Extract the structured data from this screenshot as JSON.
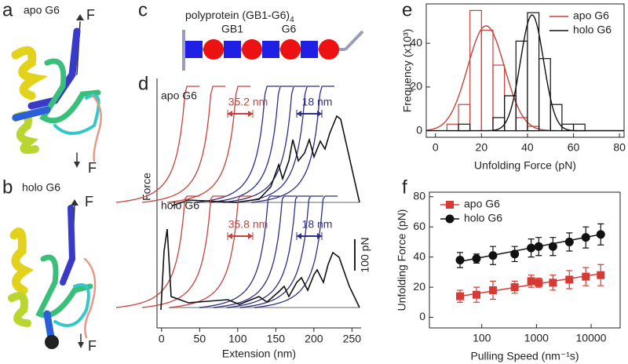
{
  "panel_labels": [
    "a",
    "b",
    "c",
    "d",
    "e",
    "f"
  ],
  "structures": [
    {
      "title": "apo G6",
      "force_labels": [
        "F",
        "F"
      ]
    },
    {
      "title": "holo G6",
      "force_labels": [
        "F",
        "F"
      ]
    }
  ],
  "schematic": {
    "title": "polyprotein (GB1-G6)",
    "title_subscript": "4",
    "domain_labels": [
      "GB1",
      "G6"
    ]
  },
  "chart_data": [
    {
      "type": "line",
      "x_label": "Extension (nm)",
      "y_label": "Force",
      "xlim": [
        -6,
        262
      ],
      "xticks": [
        0,
        50,
        100,
        150,
        200,
        250
      ],
      "trace_titles": [
        "apo G6",
        "holo G6"
      ],
      "annotations": [
        "35.2 nm",
        "18 nm",
        "35.8 nm",
        "18 nm"
      ],
      "scale_bar": "100 pN",
      "colors": [
        "#c8413b",
        "#2e2e86",
        "#111111",
        "#999999"
      ]
    },
    {
      "type": "histogram",
      "x_label": "Unfolding Force (pN)",
      "y_label": "Frequency (x10³)",
      "xlim": [
        -4,
        82
      ],
      "xticks": [
        0,
        20,
        40,
        60,
        80
      ],
      "ylim": [
        -3,
        58
      ],
      "yticks": [
        0,
        20,
        40
      ],
      "legend": "upper right",
      "grid": false,
      "series": [
        {
          "name": "apo G6",
          "color": "#c8413b",
          "bins": [
            5,
            10,
            15,
            20,
            25,
            30,
            35,
            40,
            45
          ],
          "values": [
            3,
            12,
            55,
            46,
            30,
            16,
            6,
            2
          ],
          "fit": {
            "mean": 22,
            "sd": 8,
            "peak": 48
          }
        },
        {
          "name": "holo G6",
          "color": "#111111",
          "bins": [
            10,
            15,
            20,
            25,
            30,
            35,
            40,
            45,
            50,
            55,
            60,
            65
          ],
          "values": [
            3,
            0,
            0,
            6,
            16,
            41,
            54,
            33,
            12,
            3,
            3
          ],
          "fit": {
            "mean": 42,
            "sd": 5,
            "peak": 53
          }
        }
      ]
    },
    {
      "type": "scatter",
      "x_label": "Pulling Speed (nm⁻¹s)",
      "y_label": "Unfolding Force (pN)",
      "xscale": "log",
      "xlim": [
        11,
        34000
      ],
      "xticks": [
        100,
        1000,
        10000
      ],
      "ylim": [
        -7,
        83
      ],
      "yticks": [
        0,
        20,
        40,
        60,
        80
      ],
      "legend": "upper left",
      "grid": false,
      "x": [
        40,
        80,
        160,
        400,
        800,
        1100,
        2000,
        4000,
        8000,
        15000
      ],
      "series": [
        {
          "name": "apo G6",
          "color": "#d63a35",
          "marker": "square",
          "values": [
            14,
            15,
            18,
            20,
            24,
            23,
            23,
            25,
            27,
            28
          ],
          "errors": [
            4,
            5,
            6,
            4,
            4,
            3,
            5,
            6,
            6,
            7
          ],
          "fit": [
            14,
            29
          ]
        },
        {
          "name": "holo G6",
          "color": "#111111",
          "marker": "circle",
          "values": [
            38,
            39,
            41,
            42,
            46,
            47,
            47,
            50,
            53,
            55
          ],
          "errors": [
            5,
            3,
            6,
            5,
            6,
            6,
            6,
            6,
            7,
            7
          ],
          "fit": [
            37,
            55
          ]
        }
      ]
    }
  ]
}
